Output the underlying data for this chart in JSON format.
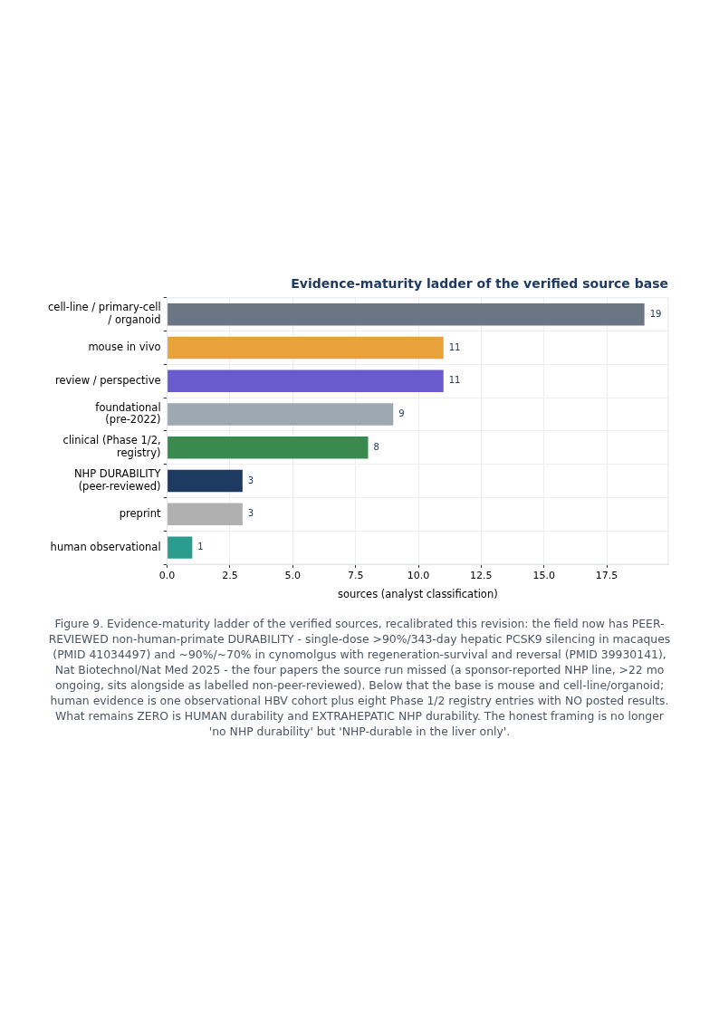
{
  "chart_data": {
    "type": "bar",
    "orientation": "horizontal",
    "title": "Evidence-maturity ladder of the verified source base",
    "xlabel": "sources (analyst classification)",
    "categories": [
      "cell-line / primary-cell\n/ organoid",
      "mouse in vivo",
      "review / perspective",
      "foundational\n(pre-2022)",
      "clinical (Phase 1/2,\nregistry)",
      "NHP DURABILITY\n(peer-reviewed)",
      "preprint",
      "human observational"
    ],
    "values": [
      19,
      11,
      11,
      9,
      8,
      3,
      3,
      1
    ],
    "colors": [
      "#6b7685",
      "#e8a23a",
      "#6a5acd",
      "#9ea8b2",
      "#3a8a50",
      "#1f3a60",
      "#b0b0b0",
      "#2a9d8f"
    ],
    "xlim": [
      0,
      19.95
    ],
    "xticks": [
      {
        "value": 0,
        "label": "0.0"
      },
      {
        "value": 2.5,
        "label": "2.5"
      },
      {
        "value": 5,
        "label": "5.0"
      },
      {
        "value": 7.5,
        "label": "7.5"
      },
      {
        "value": 10,
        "label": "10.0"
      },
      {
        "value": 12.5,
        "label": "12.5"
      },
      {
        "value": 15,
        "label": "15.0"
      },
      {
        "value": 17.5,
        "label": "17.5"
      }
    ],
    "grid": true,
    "data_labels": true,
    "legend": false,
    "annotations": [
      "Figure 9. Evidence-maturity ladder of the verified sources, recalibrated this revision: the field now has PEER-REVIEWED non-human-primate DURABILITY - single-dose >90%/343-day hepatic PCSK9 silencing in macaques (PMID 41034497) and ~90%/~70% in cynomolgus with regeneration-survival and reversal (PMID 39930141), Nat Biotechnol/Nat Med 2025 - the four papers the source run missed (a sponsor-reported NHP line, >22 mo ongoing, sits alongside as labelled non-peer-reviewed). Below that the base is mouse and cell-line/organoid; human evidence is one observational HBV cohort plus eight Phase 1/2 registry entries with NO posted results. What remains ZERO is HUMAN durability and EXTRAHEPATIC NHP durability. The honest framing is no longer 'no NHP durability' but 'NHP-durable in the liver only'."
    ]
  }
}
